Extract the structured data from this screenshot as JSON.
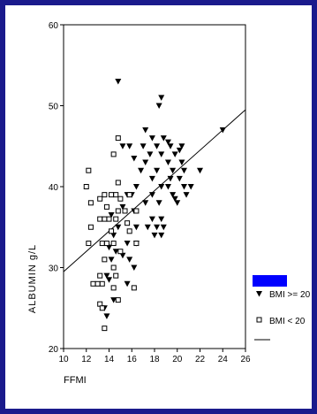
{
  "chart_data": {
    "type": "scatter",
    "title": "",
    "xlabel": "FFMI",
    "ylabel": "ALBUMIN g/L",
    "xlim": [
      10,
      26
    ],
    "ylim": [
      20,
      60
    ],
    "xticks": [
      10,
      12,
      14,
      16,
      18,
      20,
      22,
      24,
      26
    ],
    "yticks": [
      20,
      30,
      40,
      50,
      60
    ],
    "grid": false,
    "legend_position": "right",
    "colors": {
      "background": "#1a1a8c",
      "plot_bg": "#ffffff",
      "marker": "#000000",
      "legend_patch": "#0000ff"
    },
    "series": [
      {
        "name": "BMI >= 20",
        "marker": "filled-triangle-down",
        "points": [
          [
            14.8,
            53
          ],
          [
            18.6,
            51
          ],
          [
            18.4,
            50
          ],
          [
            17.2,
            47
          ],
          [
            17.8,
            46
          ],
          [
            18.8,
            46
          ],
          [
            19.2,
            45.5
          ],
          [
            20.4,
            45
          ],
          [
            17,
            45
          ],
          [
            18.2,
            45
          ],
          [
            19.4,
            45
          ],
          [
            20.2,
            44.5
          ],
          [
            15.8,
            45
          ],
          [
            15.2,
            45
          ],
          [
            17.6,
            44
          ],
          [
            18.6,
            44
          ],
          [
            19.8,
            44
          ],
          [
            16.2,
            43.5
          ],
          [
            17.2,
            43
          ],
          [
            19.2,
            43
          ],
          [
            20.4,
            43
          ],
          [
            22,
            42
          ],
          [
            16.8,
            42
          ],
          [
            18.2,
            42
          ],
          [
            19.6,
            42
          ],
          [
            20.6,
            42
          ],
          [
            17.8,
            41
          ],
          [
            19.4,
            41
          ],
          [
            20.2,
            41
          ],
          [
            16.4,
            40
          ],
          [
            18.6,
            40
          ],
          [
            19.2,
            40
          ],
          [
            20.6,
            40
          ],
          [
            21.2,
            40
          ],
          [
            15.6,
            39
          ],
          [
            16,
            39
          ],
          [
            17.8,
            39
          ],
          [
            19.6,
            39
          ],
          [
            20.8,
            39
          ],
          [
            19.8,
            38.5
          ],
          [
            17.2,
            38
          ],
          [
            18.4,
            38
          ],
          [
            20,
            38
          ],
          [
            15.2,
            37.5
          ],
          [
            16.2,
            37
          ],
          [
            14.2,
            36.5
          ],
          [
            17.8,
            36
          ],
          [
            18.6,
            36
          ],
          [
            16.4,
            35
          ],
          [
            17.4,
            35
          ],
          [
            18.2,
            35
          ],
          [
            18.8,
            35
          ],
          [
            14.8,
            35
          ],
          [
            14.4,
            34
          ],
          [
            18,
            34
          ],
          [
            18.6,
            34
          ],
          [
            15.6,
            33
          ],
          [
            16.4,
            33
          ],
          [
            14,
            32.5
          ],
          [
            14.6,
            32
          ],
          [
            15.2,
            31.5
          ],
          [
            14.2,
            31
          ],
          [
            15.8,
            31
          ],
          [
            16.2,
            30
          ],
          [
            13.8,
            29
          ],
          [
            14,
            28.5
          ],
          [
            15.6,
            28
          ],
          [
            13.6,
            25
          ],
          [
            14.4,
            26
          ],
          [
            13.8,
            24
          ],
          [
            24,
            47
          ]
        ]
      },
      {
        "name": "BMI < 20",
        "marker": "open-square",
        "points": [
          [
            14.8,
            46
          ],
          [
            14.4,
            44
          ],
          [
            12.2,
            42
          ],
          [
            14.8,
            40.5
          ],
          [
            12,
            40
          ],
          [
            13.6,
            39
          ],
          [
            14.2,
            39
          ],
          [
            14.6,
            39
          ],
          [
            15,
            38.5
          ],
          [
            15.8,
            39
          ],
          [
            13.2,
            38.5
          ],
          [
            12.4,
            38
          ],
          [
            13.8,
            37.5
          ],
          [
            14.8,
            37
          ],
          [
            15.4,
            37
          ],
          [
            16.4,
            37
          ],
          [
            13.2,
            36
          ],
          [
            13.6,
            36
          ],
          [
            14,
            36
          ],
          [
            14.6,
            36
          ],
          [
            15.6,
            35.5
          ],
          [
            12.4,
            35
          ],
          [
            14.2,
            34.5
          ],
          [
            15.8,
            34.5
          ],
          [
            12.2,
            33
          ],
          [
            13.4,
            33
          ],
          [
            13.8,
            33
          ],
          [
            14.4,
            33
          ],
          [
            16.4,
            33
          ],
          [
            15,
            32
          ],
          [
            13.6,
            31
          ],
          [
            14.4,
            30
          ],
          [
            13.2,
            29
          ],
          [
            14.6,
            29
          ],
          [
            12.6,
            28
          ],
          [
            13,
            28
          ],
          [
            13.4,
            28
          ],
          [
            14.4,
            27.5
          ],
          [
            16.2,
            27.5
          ],
          [
            14.8,
            26
          ],
          [
            13.2,
            25.5
          ],
          [
            13.4,
            25
          ],
          [
            13.6,
            22.5
          ]
        ]
      },
      {
        "name": "",
        "type": "line",
        "points": [
          [
            10,
            29.5
          ],
          [
            26,
            49.5
          ]
        ]
      }
    ]
  }
}
